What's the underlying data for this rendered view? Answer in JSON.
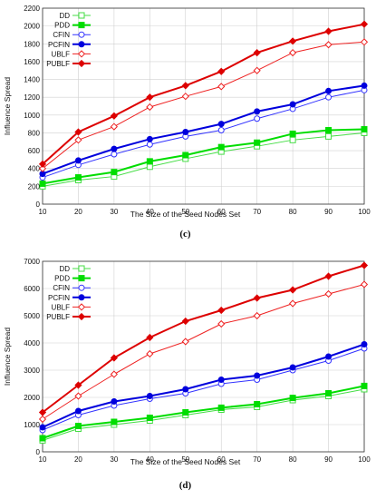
{
  "chart_data": [
    {
      "type": "line",
      "panel_label": "(c)",
      "xlabel": "The Size of the Seed Nodes Set",
      "ylabel": "Influence Spread",
      "x": [
        10,
        20,
        30,
        40,
        50,
        60,
        70,
        80,
        90,
        100
      ],
      "xlim": [
        10,
        100
      ],
      "ylim": [
        0,
        2200
      ],
      "yticks": [
        0,
        200,
        400,
        600,
        800,
        1000,
        1200,
        1400,
        1600,
        1800,
        2000,
        2200
      ],
      "grid": true,
      "legend_position": "top-left",
      "series": [
        {
          "name": "DD",
          "color": "#44dd44",
          "marker": "square-open",
          "thick": false,
          "values": [
            200,
            270,
            310,
            420,
            510,
            590,
            650,
            720,
            760,
            800
          ]
        },
        {
          "name": "PDD",
          "color": "#00dd00",
          "marker": "square-filled",
          "thick": true,
          "values": [
            230,
            300,
            360,
            480,
            550,
            640,
            690,
            790,
            830,
            840
          ]
        },
        {
          "name": "CFIN",
          "color": "#3333ff",
          "marker": "circle-open",
          "thick": false,
          "values": [
            300,
            440,
            560,
            670,
            760,
            830,
            960,
            1070,
            1200,
            1280
          ]
        },
        {
          "name": "PCFIN",
          "color": "#0000dd",
          "marker": "circle-filled",
          "thick": true,
          "values": [
            340,
            490,
            620,
            730,
            810,
            900,
            1040,
            1120,
            1270,
            1330
          ]
        },
        {
          "name": "UBLF",
          "color": "#ee2222",
          "marker": "diamond-open",
          "thick": false,
          "values": [
            400,
            720,
            870,
            1090,
            1210,
            1320,
            1500,
            1700,
            1790,
            1820
          ]
        },
        {
          "name": "PUBLF",
          "color": "#dd0000",
          "marker": "diamond-filled",
          "thick": true,
          "values": [
            450,
            810,
            990,
            1200,
            1330,
            1490,
            1700,
            1830,
            1940,
            2020
          ]
        }
      ]
    },
    {
      "type": "line",
      "panel_label": "(d)",
      "xlabel": "The Size of the Seed Nodes Set",
      "ylabel": "Influence Spread",
      "x": [
        10,
        20,
        30,
        40,
        50,
        60,
        70,
        80,
        90,
        100
      ],
      "xlim": [
        10,
        100
      ],
      "ylim": [
        0,
        7000
      ],
      "yticks": [
        0,
        1000,
        2000,
        3000,
        4000,
        5000,
        6000,
        7000
      ],
      "grid": true,
      "legend_position": "top-left",
      "series": [
        {
          "name": "DD",
          "color": "#44dd44",
          "marker": "square-open",
          "thick": false,
          "values": [
            420,
            850,
            1000,
            1150,
            1350,
            1550,
            1650,
            1900,
            2050,
            2300
          ]
        },
        {
          "name": "PDD",
          "color": "#00dd00",
          "marker": "square-filled",
          "thick": true,
          "values": [
            500,
            950,
            1100,
            1250,
            1450,
            1620,
            1750,
            1980,
            2150,
            2420
          ]
        },
        {
          "name": "CFIN",
          "color": "#3333ff",
          "marker": "circle-open",
          "thick": false,
          "values": [
            800,
            1350,
            1700,
            1950,
            2150,
            2500,
            2650,
            3000,
            3350,
            3800
          ]
        },
        {
          "name": "PCFIN",
          "color": "#0000dd",
          "marker": "circle-filled",
          "thick": true,
          "values": [
            900,
            1500,
            1850,
            2050,
            2300,
            2650,
            2800,
            3100,
            3500,
            3950
          ]
        },
        {
          "name": "UBLF",
          "color": "#ee2222",
          "marker": "diamond-open",
          "thick": false,
          "values": [
            1200,
            2050,
            2850,
            3600,
            4050,
            4700,
            5000,
            5450,
            5800,
            6150
          ]
        },
        {
          "name": "PUBLF",
          "color": "#dd0000",
          "marker": "diamond-filled",
          "thick": true,
          "values": [
            1450,
            2450,
            3450,
            4200,
            4800,
            5200,
            5650,
            5950,
            6450,
            6850
          ]
        }
      ]
    }
  ]
}
